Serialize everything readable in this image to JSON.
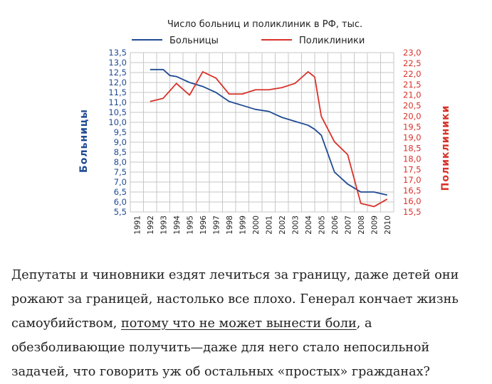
{
  "chart_data": {
    "type": "line",
    "title": "Число больниц и поликлиник в РФ, тыс.",
    "categories": [
      "1991",
      "1992",
      "1993",
      "1994",
      "1995",
      "1996",
      "1997",
      "1998",
      "1999",
      "2000",
      "2001",
      "2002",
      "2003",
      "2004",
      "2005",
      "2006",
      "2007",
      "2008",
      "2009",
      "2010"
    ],
    "series": [
      {
        "name": "Больницы",
        "axis": "left",
        "color": "#1f4a93",
        "points": [
          [
            1992,
            12.65
          ],
          [
            1993,
            12.65
          ],
          [
            1993.5,
            12.35
          ],
          [
            1994,
            12.3
          ],
          [
            1995,
            12.0
          ],
          [
            1996,
            11.8
          ],
          [
            1997,
            11.5
          ],
          [
            1998,
            11.05
          ],
          [
            1999,
            10.85
          ],
          [
            2000,
            10.65
          ],
          [
            2001,
            10.55
          ],
          [
            2002,
            10.25
          ],
          [
            2003,
            10.05
          ],
          [
            2004,
            9.85
          ],
          [
            2004.5,
            9.65
          ],
          [
            2005,
            9.35
          ],
          [
            2006,
            7.5
          ],
          [
            2007,
            6.9
          ],
          [
            2008,
            6.5
          ],
          [
            2009,
            6.5
          ],
          [
            2010,
            6.35
          ]
        ]
      },
      {
        "name": "Поликлиники",
        "axis": "right",
        "color": "#d8322a",
        "points": [
          [
            1992,
            20.7
          ],
          [
            1993,
            20.85
          ],
          [
            1994,
            21.55
          ],
          [
            1995,
            21.0
          ],
          [
            1996,
            22.1
          ],
          [
            1997,
            21.8
          ],
          [
            1998,
            21.05
          ],
          [
            1999,
            21.05
          ],
          [
            2000,
            21.25
          ],
          [
            2001,
            21.25
          ],
          [
            2002,
            21.35
          ],
          [
            2003,
            21.55
          ],
          [
            2004,
            22.1
          ],
          [
            2004.5,
            21.85
          ],
          [
            2005,
            20.0
          ],
          [
            2006,
            18.8
          ],
          [
            2007,
            18.2
          ],
          [
            2008,
            15.9
          ],
          [
            2009,
            15.75
          ],
          [
            2010,
            16.1
          ]
        ]
      }
    ],
    "left_axis": {
      "label": "Больницы",
      "ylim": [
        5.5,
        13.5
      ],
      "ticks": [
        "13,5",
        "13,0",
        "12,5",
        "12,0",
        "11,5",
        "11,0",
        "10,5",
        "10,0",
        "9,5",
        "9,0",
        "8,5",
        "8,0",
        "7,5",
        "7,0",
        "6,5",
        "6,0",
        "5,5"
      ]
    },
    "right_axis": {
      "label": "Поликлиники",
      "ylim": [
        15.5,
        23.0
      ],
      "ticks": [
        "23,0",
        "22,5",
        "22,0",
        "21,5",
        "21,0",
        "20,5",
        "20,0",
        "19,5",
        "19,0",
        "18,5",
        "18,0",
        "17,5",
        "17,0",
        "16,5",
        "16,0",
        "15,5"
      ]
    },
    "grid": true,
    "legend": "top"
  },
  "article": {
    "lines": [
      "Депутаты и чиновники ездят лечиться за границу, даже детей они",
      "рожают за границей, настолько все плохо. Генерал кончает жизнь"
    ],
    "line3_before": "самоубийством, ",
    "link_text": "потому что не может вынести боли",
    "line3_after": ", а",
    "lines_after": [
      "обезболивающие получить—даже для него стало непосильной",
      "задачей, что говорить уж об остальных «простых» гражданах?"
    ]
  }
}
